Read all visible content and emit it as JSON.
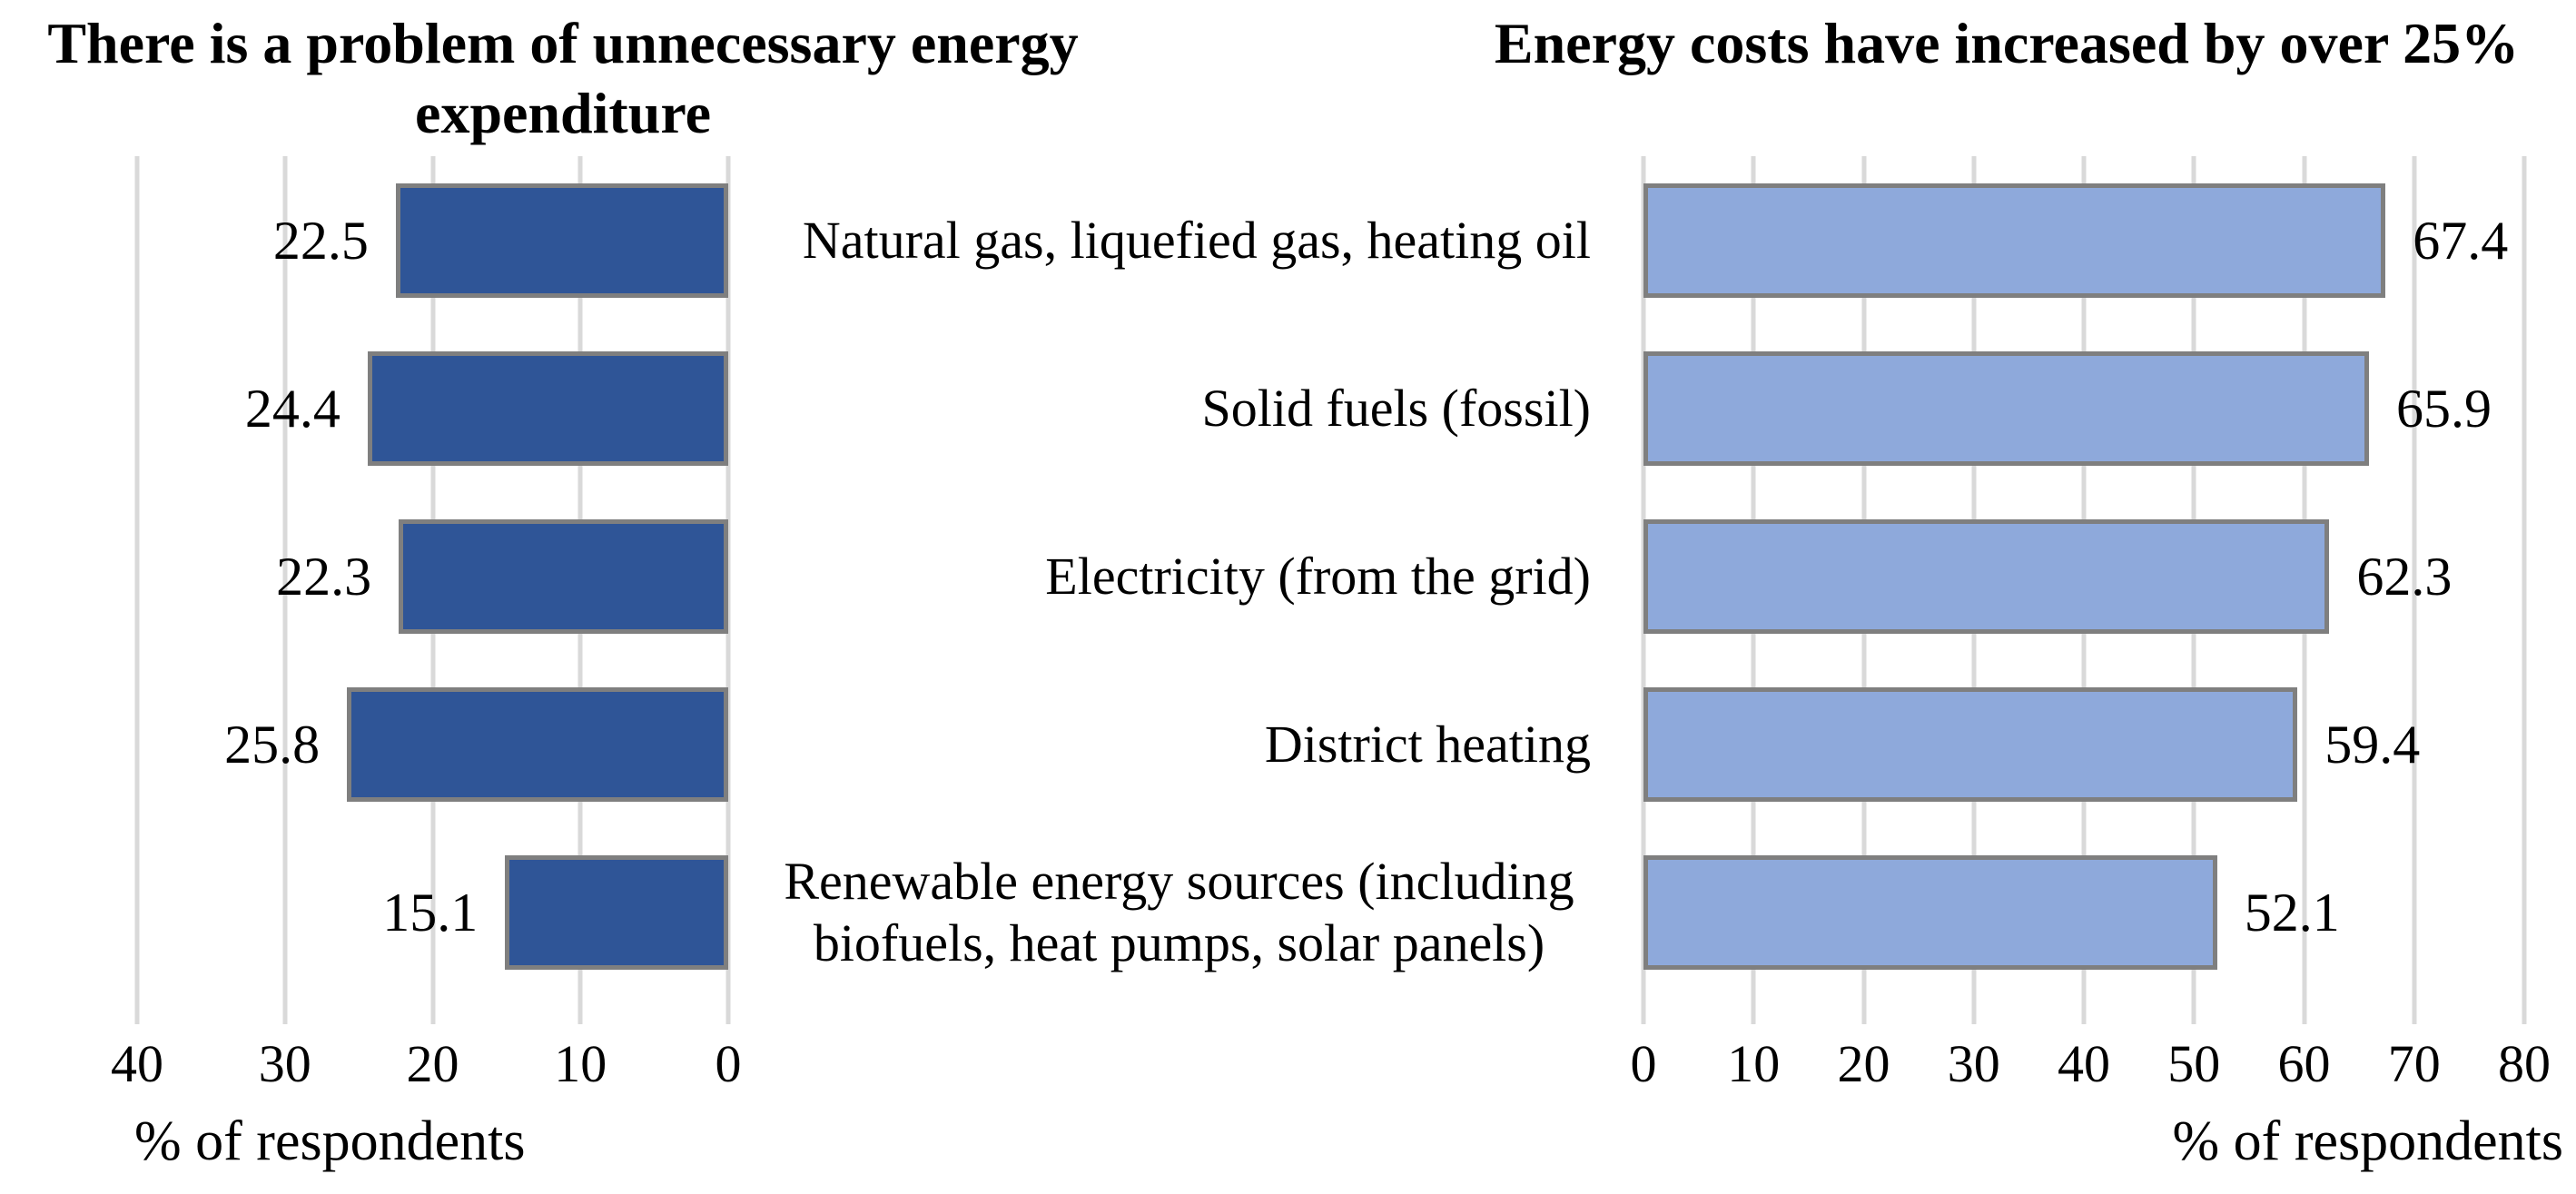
{
  "chart_data": [
    {
      "type": "bar",
      "orientation": "horizontal",
      "side": "left",
      "title": "There is a problem of unnecessary energy expenditure",
      "xlabel": "% of respondents",
      "categories": [
        "Natural gas, liquefied gas, heating oil",
        "Solid fuels (fossil)",
        "Electricity (from the grid)",
        "District heating",
        "Renewable energy sources (including biofuels, heat pumps, solar panels)"
      ],
      "values": [
        22.5,
        24.4,
        22.3,
        25.8,
        15.1
      ],
      "value_labels": [
        "22.5",
        "24.4",
        "22.3",
        "25.8",
        "15.1"
      ],
      "xlim": [
        0,
        40
      ],
      "axis_reversed": true,
      "ticks": [
        40,
        30,
        20,
        10,
        0
      ],
      "grid": true,
      "legend": "none",
      "bar_fill": "#2F5597",
      "bar_border": "#7F7F7F",
      "gridline_color": "#D9D9D9"
    },
    {
      "type": "bar",
      "orientation": "horizontal",
      "side": "right",
      "title": "Energy costs have increased by over 25%",
      "xlabel": "% of respondents",
      "categories": [
        "Natural gas, liquefied gas, heating oil",
        "Solid fuels (fossil)",
        "Electricity (from the grid)",
        "District heating",
        "Renewable energy sources (including biofuels, heat pumps, solar panels)"
      ],
      "values": [
        67.4,
        65.9,
        62.3,
        59.4,
        52.1
      ],
      "value_labels": [
        "67.4",
        "65.9",
        "62.3",
        "59.4",
        "52.1"
      ],
      "xlim": [
        0,
        80
      ],
      "axis_reversed": false,
      "ticks": [
        0,
        10,
        20,
        30,
        40,
        50,
        60,
        70,
        80
      ],
      "grid": true,
      "legend": "none",
      "bar_fill": "#8EA9DB",
      "bar_border": "#7F7F7F",
      "gridline_color": "#D9D9D9"
    }
  ]
}
